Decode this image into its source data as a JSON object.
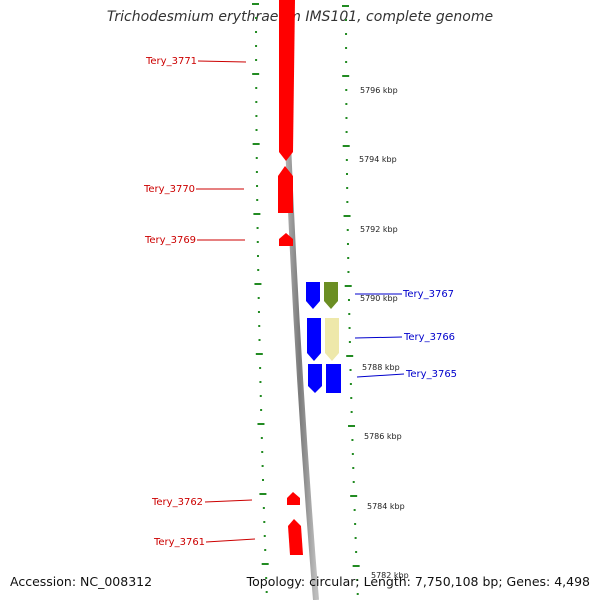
{
  "title": "Trichodesmium erythraeum IMS101, complete genome",
  "footer": {
    "accession": "Accession: NC_008312",
    "summary": "Topology: circular; Length: 7,750,108 bp; Genes: 4,498"
  },
  "colors": {
    "forward_strand": "#ff0000",
    "reverse_strand": "#0000ff",
    "olive_feature": "#6b8e23",
    "pale_feature": "#eee8aa",
    "backbone": "#888888",
    "tick": "#228b22",
    "red_label": "#cc0000",
    "blue_label": "#0000cc"
  },
  "scale_labels": [
    "5796 kbp",
    "5794 kbp",
    "5792 kbp",
    "5790 kbp",
    "5788 kbp",
    "5786 kbp",
    "5784 kbp",
    "5782 kbp"
  ],
  "genes": [
    {
      "id": "Tery_3771",
      "strand": "forward",
      "color": "forward_strand"
    },
    {
      "id": "Tery_3770",
      "strand": "forward",
      "color": "forward_strand"
    },
    {
      "id": "Tery_3769",
      "strand": "forward",
      "color": "forward_strand"
    },
    {
      "id": "Tery_3767",
      "strand": "reverse",
      "color": "olive_feature"
    },
    {
      "id": "Tery_3766",
      "strand": "reverse",
      "color": "pale_feature"
    },
    {
      "id": "Tery_3765",
      "strand": "reverse",
      "color": "reverse_strand"
    },
    {
      "id": "Tery_3762",
      "strand": "forward",
      "color": "forward_strand"
    },
    {
      "id": "Tery_3761",
      "strand": "forward",
      "color": "forward_strand"
    }
  ]
}
